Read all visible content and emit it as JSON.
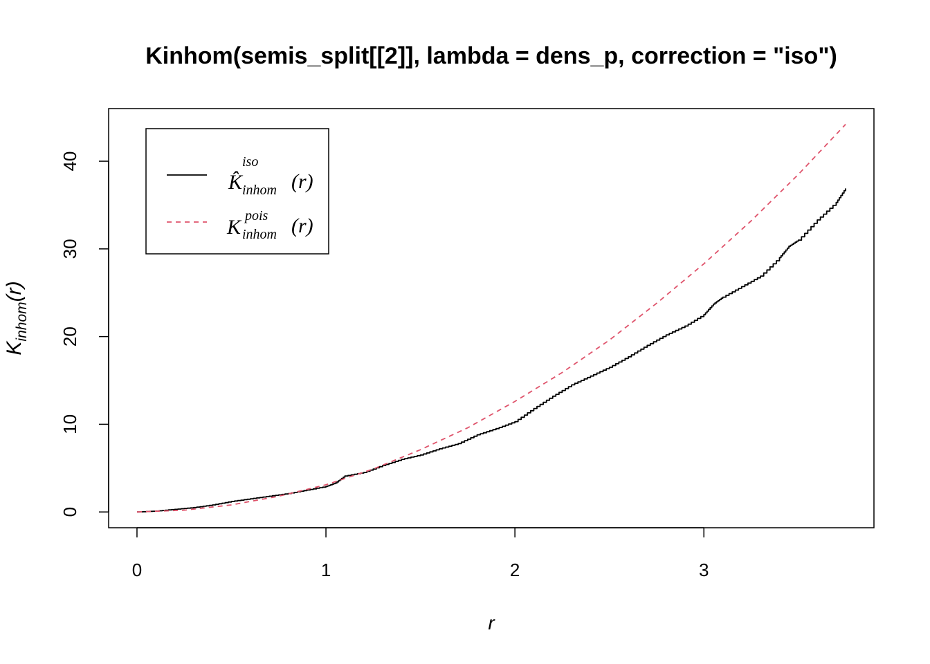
{
  "chart_data": {
    "type": "line",
    "title": "Kinhom(semis_split[[2]], lambda = dens_p, correction = \"iso\")",
    "xlabel": "r",
    "ylabel_main": "K",
    "ylabel_sub": "inhom",
    "ylabel_arg": "(r)",
    "xlim": [
      -0.15,
      3.9
    ],
    "ylim": [
      -1.8,
      46
    ],
    "x_ticks": [
      0,
      1,
      2,
      3
    ],
    "y_ticks": [
      0,
      10,
      20,
      30,
      40
    ],
    "grid": false,
    "legend_position": "top-left",
    "series": [
      {
        "key": "iso",
        "legend_main": "K̂",
        "legend_sup": "iso",
        "legend_sub": "inhom",
        "legend_arg": "(r)",
        "color": "#000000",
        "dash": "solid",
        "x": [
          0.0,
          0.1,
          0.2,
          0.3,
          0.4,
          0.5,
          0.6,
          0.7,
          0.8,
          0.9,
          1.0,
          1.05,
          1.1,
          1.2,
          1.3,
          1.4,
          1.5,
          1.6,
          1.7,
          1.8,
          1.9,
          2.0,
          2.1,
          2.2,
          2.3,
          2.4,
          2.5,
          2.6,
          2.7,
          2.8,
          2.9,
          3.0,
          3.05,
          3.1,
          3.2,
          3.3,
          3.4,
          3.45,
          3.5,
          3.6,
          3.7,
          3.75
        ],
        "y": [
          0.0,
          0.1,
          0.3,
          0.5,
          0.8,
          1.2,
          1.5,
          1.8,
          2.1,
          2.5,
          2.9,
          3.3,
          4.1,
          4.5,
          5.3,
          6.0,
          6.5,
          7.2,
          7.8,
          8.8,
          9.5,
          10.3,
          11.8,
          13.2,
          14.5,
          15.5,
          16.5,
          17.7,
          19.0,
          20.2,
          21.2,
          22.5,
          23.7,
          24.5,
          25.7,
          26.9,
          29.0,
          30.3,
          31.0,
          33.3,
          35.3,
          36.9
        ]
      },
      {
        "key": "pois",
        "legend_main": "K",
        "legend_sup": "pois",
        "legend_sub": "inhom",
        "legend_arg": "(r)",
        "color": "#DF536B",
        "dash": "dashed",
        "x": [
          0.0,
          0.25,
          0.5,
          0.75,
          1.0,
          1.25,
          1.5,
          1.75,
          2.0,
          2.25,
          2.5,
          2.75,
          3.0,
          3.25,
          3.5,
          3.75
        ],
        "y": [
          0.0,
          0.2,
          0.8,
          1.8,
          3.1,
          4.9,
          7.1,
          9.6,
          12.6,
          15.9,
          19.6,
          23.8,
          28.3,
          33.2,
          38.5,
          44.2
        ]
      }
    ]
  }
}
